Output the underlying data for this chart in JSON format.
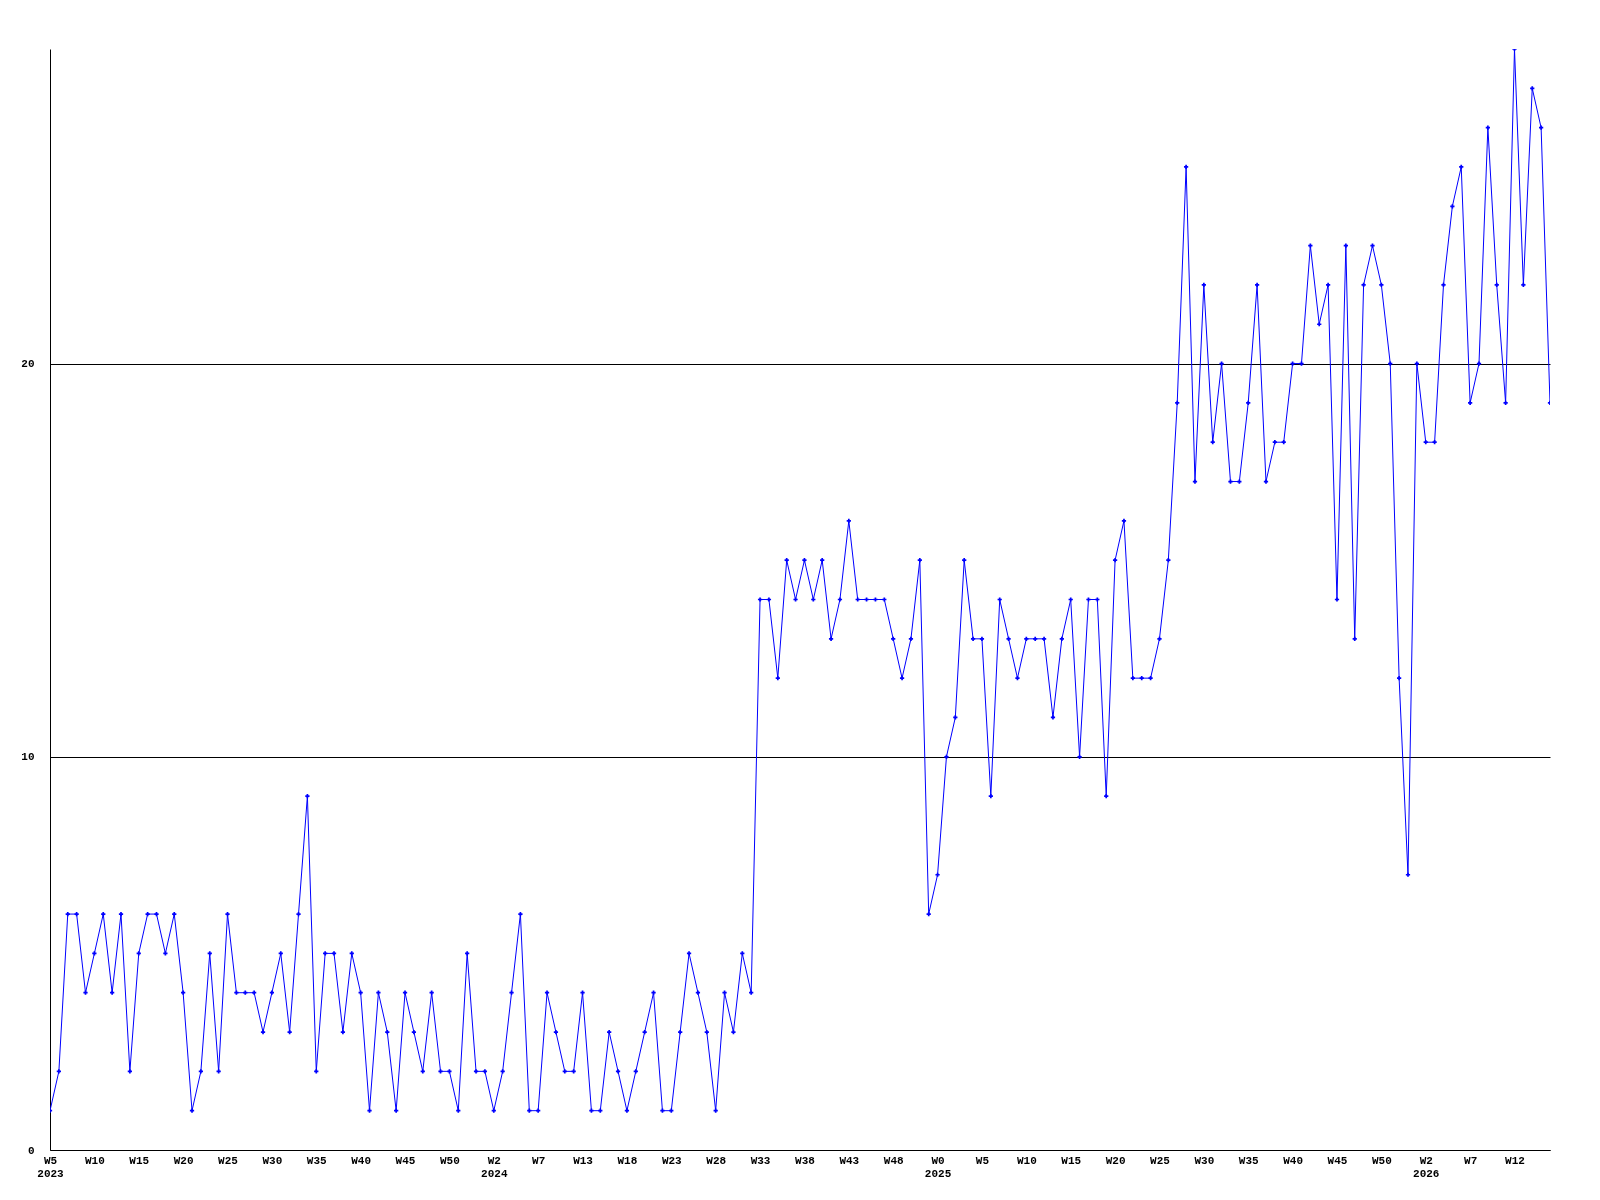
{
  "chart_data": {
    "type": "line",
    "categories": [
      "W5\n2023",
      null,
      null,
      null,
      null,
      "W10",
      null,
      null,
      null,
      null,
      "W15",
      null,
      null,
      null,
      null,
      "W20",
      null,
      null,
      null,
      null,
      "W25",
      null,
      null,
      null,
      null,
      "W30",
      null,
      null,
      null,
      null,
      "W35",
      null,
      null,
      null,
      null,
      "W40",
      null,
      null,
      null,
      null,
      "W45",
      null,
      null,
      null,
      null,
      "W50",
      null,
      null,
      null,
      null,
      "W2\n2024",
      null,
      null,
      null,
      null,
      "W7",
      null,
      null,
      null,
      null,
      "W13",
      null,
      null,
      null,
      null,
      "W18",
      null,
      null,
      null,
      null,
      "W23",
      null,
      null,
      null,
      null,
      "W28",
      null,
      null,
      null,
      null,
      "W33",
      null,
      null,
      null,
      null,
      "W38",
      null,
      null,
      null,
      null,
      "W43",
      null,
      null,
      null,
      null,
      "W48",
      null,
      null,
      null,
      null,
      "W0\n2025",
      null,
      null,
      null,
      null,
      "W5",
      null,
      null,
      null,
      null,
      "W10",
      null,
      null,
      null,
      null,
      "W15",
      null,
      null,
      null,
      null,
      "W20",
      null,
      null,
      null,
      null,
      "W25",
      null,
      null,
      null,
      null,
      "W30",
      null,
      null,
      null,
      null,
      "W35",
      null,
      null,
      null,
      null,
      "W40",
      null,
      null,
      null,
      null,
      "W45",
      null,
      null,
      null,
      null,
      "W50",
      null,
      null,
      null,
      null,
      "W2\n2026",
      null,
      null,
      null,
      null,
      "W7",
      null,
      null,
      null,
      null,
      "W12",
      null,
      null,
      null,
      null
    ],
    "series": [
      {
        "color": "#0000ff",
        "values": [
          1,
          2,
          6,
          6,
          4,
          5,
          6,
          4,
          6,
          2,
          5,
          6,
          6,
          5,
          6,
          4,
          1,
          2,
          5,
          2,
          6,
          4,
          4,
          4,
          3,
          4,
          5,
          3,
          6,
          9,
          2,
          5,
          5,
          3,
          5,
          4,
          1,
          4,
          3,
          1,
          4,
          3,
          2,
          4,
          2,
          2,
          1,
          5,
          2,
          2,
          1,
          2,
          4,
          6,
          1,
          1,
          4,
          3,
          2,
          2,
          4,
          1,
          1,
          3,
          2,
          1,
          2,
          3,
          4,
          1,
          1,
          3,
          5,
          4,
          3,
          1,
          4,
          3,
          5,
          4,
          14,
          14,
          12,
          15,
          14,
          15,
          14,
          15,
          13,
          14,
          16,
          14,
          14,
          14,
          14,
          13,
          12,
          13,
          15,
          6,
          7,
          10,
          11,
          15,
          13,
          13,
          9,
          14,
          13,
          12,
          13,
          13,
          13,
          11,
          13,
          14,
          10,
          14,
          14,
          9,
          15,
          16,
          12,
          12,
          12,
          13,
          15,
          19,
          25,
          17,
          22,
          18,
          20,
          17,
          17,
          19,
          22,
          17,
          18,
          18,
          20,
          20,
          23,
          21,
          22,
          14,
          23,
          13,
          22,
          23,
          22,
          20,
          12,
          7,
          20,
          18,
          18,
          22,
          24,
          25,
          19,
          20,
          26,
          22,
          19,
          28,
          22,
          27,
          26,
          19
        ]
      }
    ],
    "ylim": [
      0,
      28
    ],
    "yticks": [
      0,
      10,
      20
    ],
    "grid": "y",
    "marker": "cross",
    "line_style": "solid"
  }
}
